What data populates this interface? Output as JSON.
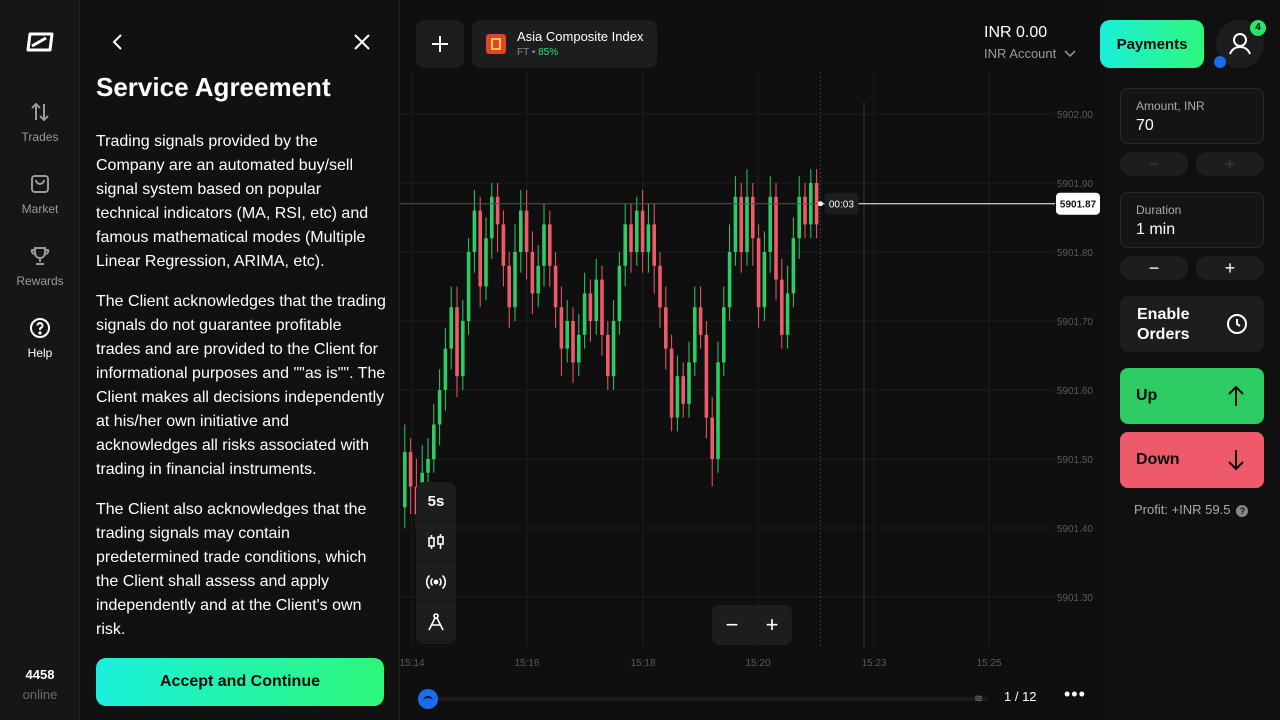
{
  "nav": {
    "items": [
      {
        "label": "Trades",
        "icon": "arrows-updown-icon"
      },
      {
        "label": "Market",
        "icon": "bag-icon"
      },
      {
        "label": "Rewards",
        "icon": "trophy-icon"
      },
      {
        "label": "Help",
        "icon": "help-icon"
      }
    ],
    "online_count": "4458",
    "online_label": "online"
  },
  "agreement": {
    "title": "Service Agreement",
    "paragraphs": [
      "Trading signals provided by the Company are an automated buy/sell signal system based on popular technical indicators (MA, RSI, etc) and famous mathematical modes (Multiple Linear Regression, ARIMA, etc).",
      "The Client acknowledges that the trading signals do not guarantee profitable trades and are provided to the Client for informational purposes and \"\"as is\"\". The Client makes all decisions independently at his/her own initiative and acknowledges all risks associated with trading in financial instruments.",
      "The Client also acknowledges that the trading signals may contain predetermined trade conditions, which the Client shall assess and apply independently and at the Client's own risk."
    ],
    "accept_label": "Accept and Continue"
  },
  "asset": {
    "name": "Asia Composite Index",
    "type": "FT",
    "separator": "•",
    "payout": "85%"
  },
  "account": {
    "balance": "INR 0.00",
    "label": "INR Account"
  },
  "header": {
    "payments_label": "Payments",
    "notification_count": "4"
  },
  "tools": {
    "interval": "5s"
  },
  "trade": {
    "amount_label": "Amount, INR",
    "amount_value": "70",
    "duration_label": "Duration",
    "duration_value": "1 min",
    "enable_orders_line1": "Enable",
    "enable_orders_line2": "Orders",
    "up_label": "Up",
    "down_label": "Down",
    "profit_label": "Profit: +INR 59.5",
    "minus": "−",
    "plus": "+"
  },
  "timeline": {
    "pager": "1 / 12",
    "more": "•••"
  },
  "chart_data": {
    "type": "candlestick",
    "y_ticks": [
      "5902.00",
      "5901.90",
      "5901.80",
      "5901.70",
      "5901.60",
      "5901.50",
      "5901.40",
      "5901.30"
    ],
    "y_tick_values": [
      5902.0,
      5901.9,
      5901.8,
      5901.7,
      5901.6,
      5901.5,
      5901.4,
      5901.3
    ],
    "x_ticks": [
      "15:14",
      "15:16",
      "15:18",
      "15:20",
      "15:23",
      "15:25"
    ],
    "current_price": "5901.87",
    "current_price_value": 5901.87,
    "countdown": "00:03",
    "colors": {
      "up": "#2ccb64",
      "down": "#ef5a6a",
      "grid": "#1c1c1c",
      "axis_text": "#5a5a5a"
    },
    "candles": [
      [
        5901.43,
        5901.51,
        5901.55,
        5901.4
      ],
      [
        5901.51,
        5901.46,
        5901.53,
        5901.42
      ],
      [
        5901.46,
        5901.42,
        5901.5,
        5901.4
      ],
      [
        5901.42,
        5901.48,
        5901.52,
        5901.41
      ],
      [
        5901.48,
        5901.5,
        5901.53,
        5901.45
      ],
      [
        5901.5,
        5901.55,
        5901.58,
        5901.48
      ],
      [
        5901.55,
        5901.6,
        5901.63,
        5901.52
      ],
      [
        5901.6,
        5901.66,
        5901.69,
        5901.57
      ],
      [
        5901.66,
        5901.72,
        5901.75,
        5901.63
      ],
      [
        5901.72,
        5901.62,
        5901.75,
        5901.59
      ],
      [
        5901.62,
        5901.7,
        5901.73,
        5901.6
      ],
      [
        5901.7,
        5901.8,
        5901.82,
        5901.68
      ],
      [
        5901.8,
        5901.86,
        5901.89,
        5901.77
      ],
      [
        5901.86,
        5901.75,
        5901.88,
        5901.72
      ],
      [
        5901.75,
        5901.82,
        5901.85,
        5901.73
      ],
      [
        5901.82,
        5901.88,
        5901.9,
        5901.79
      ],
      [
        5901.88,
        5901.84,
        5901.9,
        5901.8
      ],
      [
        5901.84,
        5901.78,
        5901.86,
        5901.75
      ],
      [
        5901.78,
        5901.72,
        5901.8,
        5901.69
      ],
      [
        5901.72,
        5901.8,
        5901.84,
        5901.7
      ],
      [
        5901.8,
        5901.86,
        5901.89,
        5901.77
      ],
      [
        5901.86,
        5901.8,
        5901.89,
        5901.76
      ],
      [
        5901.8,
        5901.74,
        5901.83,
        5901.71
      ],
      [
        5901.74,
        5901.78,
        5901.81,
        5901.72
      ],
      [
        5901.78,
        5901.84,
        5901.87,
        5901.75
      ],
      [
        5901.84,
        5901.78,
        5901.86,
        5901.75
      ],
      [
        5901.78,
        5901.72,
        5901.8,
        5901.69
      ],
      [
        5901.72,
        5901.66,
        5901.75,
        5901.62
      ],
      [
        5901.66,
        5901.7,
        5901.73,
        5901.64
      ],
      [
        5901.7,
        5901.64,
        5901.72,
        5901.61
      ],
      [
        5901.64,
        5901.68,
        5901.71,
        5901.62
      ],
      [
        5901.68,
        5901.74,
        5901.77,
        5901.66
      ],
      [
        5901.74,
        5901.7,
        5901.76,
        5901.67
      ],
      [
        5901.7,
        5901.76,
        5901.79,
        5901.68
      ],
      [
        5901.76,
        5901.68,
        5901.78,
        5901.65
      ],
      [
        5901.68,
        5901.62,
        5901.7,
        5901.6
      ],
      [
        5901.62,
        5901.7,
        5901.73,
        5901.6
      ],
      [
        5901.7,
        5901.78,
        5901.8,
        5901.68
      ],
      [
        5901.78,
        5901.84,
        5901.87,
        5901.75
      ],
      [
        5901.84,
        5901.8,
        5901.87,
        5901.77
      ],
      [
        5901.8,
        5901.86,
        5901.88,
        5901.78
      ],
      [
        5901.86,
        5901.8,
        5901.89,
        5901.77
      ],
      [
        5901.8,
        5901.84,
        5901.87,
        5901.77
      ],
      [
        5901.84,
        5901.78,
        5901.87,
        5901.74
      ],
      [
        5901.78,
        5901.72,
        5901.8,
        5901.69
      ],
      [
        5901.72,
        5901.66,
        5901.75,
        5901.63
      ],
      [
        5901.66,
        5901.56,
        5901.68,
        5901.54
      ],
      [
        5901.56,
        5901.62,
        5901.65,
        5901.54
      ],
      [
        5901.62,
        5901.58,
        5901.64,
        5901.56
      ],
      [
        5901.58,
        5901.64,
        5901.67,
        5901.56
      ],
      [
        5901.64,
        5901.72,
        5901.75,
        5901.62
      ],
      [
        5901.72,
        5901.68,
        5901.75,
        5901.66
      ],
      [
        5901.68,
        5901.56,
        5901.7,
        5901.53
      ],
      [
        5901.56,
        5901.5,
        5901.59,
        5901.46
      ],
      [
        5901.5,
        5901.64,
        5901.67,
        5901.48
      ],
      [
        5901.64,
        5901.72,
        5901.75,
        5901.62
      ],
      [
        5901.72,
        5901.8,
        5901.84,
        5901.7
      ],
      [
        5901.8,
        5901.88,
        5901.91,
        5901.78
      ],
      [
        5901.88,
        5901.8,
        5901.9,
        5901.77
      ],
      [
        5901.8,
        5901.88,
        5901.92,
        5901.78
      ],
      [
        5901.88,
        5901.82,
        5901.9,
        5901.78
      ],
      [
        5901.82,
        5901.72,
        5901.84,
        5901.69
      ],
      [
        5901.72,
        5901.8,
        5901.83,
        5901.7
      ],
      [
        5901.8,
        5901.88,
        5901.91,
        5901.77
      ],
      [
        5901.88,
        5901.76,
        5901.9,
        5901.73
      ],
      [
        5901.76,
        5901.68,
        5901.79,
        5901.66
      ],
      [
        5901.68,
        5901.74,
        5901.78,
        5901.66
      ],
      [
        5901.74,
        5901.82,
        5901.85,
        5901.72
      ],
      [
        5901.82,
        5901.88,
        5901.91,
        5901.79
      ],
      [
        5901.88,
        5901.84,
        5901.9,
        5901.82
      ],
      [
        5901.84,
        5901.9,
        5901.92,
        5901.82
      ],
      [
        5901.9,
        5901.84,
        5901.92,
        5901.82
      ]
    ]
  }
}
